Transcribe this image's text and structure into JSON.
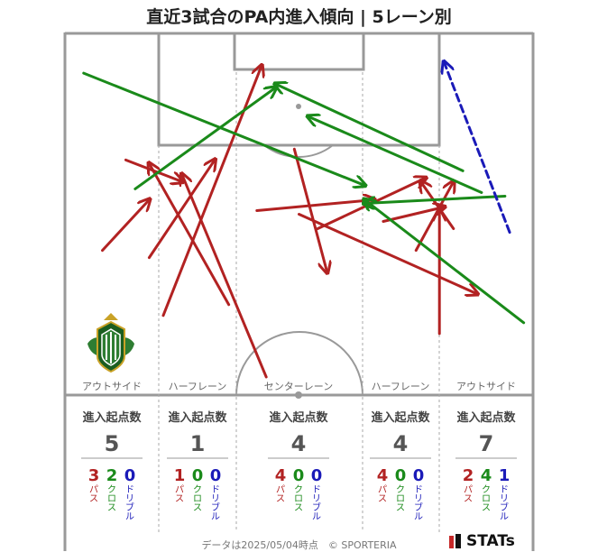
{
  "title": "直近3試合のPA内進入傾向 | 5レーン別",
  "footer": {
    "note": "データは2025/05/04時点　© SPORTERIA",
    "brand": "STATs"
  },
  "colors": {
    "pass": "#b22222",
    "cross": "#1a8a1a",
    "dribble": "#1a1ab8",
    "line": "#999999"
  },
  "logo": {
    "name": "team-crest-icon"
  },
  "chart_data": {
    "type": "pitch-arrow-map",
    "title": "直近3試合のPA内進入傾向 | 5レーン別",
    "lanes": [
      {
        "label": "アウトサイド",
        "header": "進入起点数",
        "total": 5,
        "counts": [
          {
            "type": "pass",
            "label": "パス",
            "value": 3
          },
          {
            "type": "cross",
            "label": "クロス",
            "value": 2
          },
          {
            "type": "dribble",
            "label": "ドリブル",
            "value": 0
          }
        ]
      },
      {
        "label": "ハーフレーン",
        "header": "進入起点数",
        "total": 1,
        "counts": [
          {
            "type": "pass",
            "label": "パス",
            "value": 1
          },
          {
            "type": "cross",
            "label": "クロス",
            "value": 0
          },
          {
            "type": "dribble",
            "label": "ドリブル",
            "value": 0
          }
        ]
      },
      {
        "label": "センターレーン",
        "header": "進入起点数",
        "total": 4,
        "counts": [
          {
            "type": "pass",
            "label": "パス",
            "value": 4
          },
          {
            "type": "cross",
            "label": "クロス",
            "value": 0
          },
          {
            "type": "dribble",
            "label": "ドリブル",
            "value": 0
          }
        ]
      },
      {
        "label": "ハーフレーン",
        "header": "進入起点数",
        "total": 4,
        "counts": [
          {
            "type": "pass",
            "label": "パス",
            "value": 4
          },
          {
            "type": "cross",
            "label": "クロス",
            "value": 0
          },
          {
            "type": "dribble",
            "label": "ドリブル",
            "value": 0
          }
        ]
      },
      {
        "label": "アウトサイド",
        "header": "進入起点数",
        "total": 7,
        "counts": [
          {
            "type": "pass",
            "label": "パス",
            "value": 2
          },
          {
            "type": "cross",
            "label": "クロス",
            "value": 4
          },
          {
            "type": "dribble",
            "label": "ドリブル",
            "value": 1
          }
        ]
      }
    ],
    "arrows": [
      {
        "type": "pass",
        "from": [
          0.21,
          0.22
        ],
        "to": [
          0.42,
          0.91
        ]
      },
      {
        "type": "pass",
        "from": [
          0.18,
          0.38
        ],
        "to": [
          0.32,
          0.65
        ]
      },
      {
        "type": "pass",
        "from": [
          0.43,
          0.05
        ],
        "to": [
          0.25,
          0.61
        ]
      },
      {
        "type": "pass",
        "from": [
          0.35,
          0.25
        ],
        "to": [
          0.18,
          0.64
        ]
      },
      {
        "type": "pass",
        "from": [
          0.13,
          0.65
        ],
        "to": [
          0.25,
          0.59
        ]
      },
      {
        "type": "pass",
        "from": [
          0.08,
          0.4
        ],
        "to": [
          0.18,
          0.54
        ]
      },
      {
        "type": "pass",
        "from": [
          0.5,
          0.5
        ],
        "to": [
          0.88,
          0.28
        ]
      },
      {
        "type": "pass",
        "from": [
          0.41,
          0.51
        ],
        "to": [
          0.66,
          0.54
        ]
      },
      {
        "type": "pass",
        "from": [
          0.49,
          0.68
        ],
        "to": [
          0.56,
          0.34
        ]
      },
      {
        "type": "pass",
        "from": [
          0.54,
          0.46
        ],
        "to": [
          0.77,
          0.6
        ]
      },
      {
        "type": "pass",
        "from": [
          0.83,
          0.46
        ],
        "to": [
          0.76,
          0.59
        ]
      },
      {
        "type": "pass",
        "from": [
          0.68,
          0.48
        ],
        "to": [
          0.81,
          0.52
        ]
      },
      {
        "type": "pass",
        "from": [
          0.75,
          0.4
        ],
        "to": [
          0.83,
          0.59
        ]
      },
      {
        "type": "pass",
        "from": [
          0.8,
          0.17
        ],
        "to": [
          0.8,
          0.51
        ]
      },
      {
        "type": "cross",
        "from": [
          0.04,
          0.89
        ],
        "to": [
          0.64,
          0.58
        ]
      },
      {
        "type": "cross",
        "from": [
          0.15,
          0.57
        ],
        "to": [
          0.45,
          0.85
        ]
      },
      {
        "type": "cross",
        "from": [
          0.89,
          0.56
        ],
        "to": [
          0.52,
          0.77
        ]
      },
      {
        "type": "cross",
        "from": [
          0.85,
          0.62
        ],
        "to": [
          0.45,
          0.86
        ]
      },
      {
        "type": "cross",
        "from": [
          0.94,
          0.55
        ],
        "to": [
          0.64,
          0.53
        ]
      },
      {
        "type": "cross",
        "from": [
          0.98,
          0.2
        ],
        "to": [
          0.64,
          0.54
        ]
      },
      {
        "type": "dribble",
        "from": [
          0.95,
          0.45
        ],
        "to": [
          0.81,
          0.92
        ]
      }
    ]
  }
}
